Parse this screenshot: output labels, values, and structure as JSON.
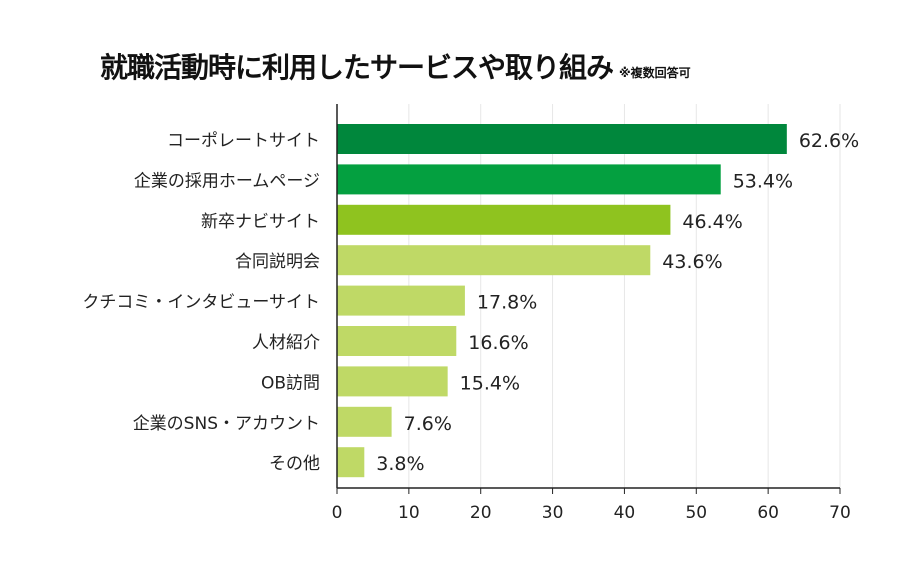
{
  "chart_data": {
    "type": "bar",
    "orientation": "horizontal",
    "title": "就職活動時に利用したサービスや取り組み",
    "subtitle": "※複数回答可",
    "categories": [
      "コーポレートサイト",
      "企業の採用ホームページ",
      "新卒ナビサイト",
      "合同説明会",
      "クチコミ・インタビューサイト",
      "人材紹介",
      "OB訪問",
      "企業のSNS・アカウント",
      "その他"
    ],
    "values": [
      62.6,
      53.4,
      46.4,
      43.6,
      17.8,
      16.6,
      15.4,
      7.6,
      3.8
    ],
    "data_labels": [
      "62.6%",
      "53.4%",
      "46.4%",
      "43.6%",
      "17.8%",
      "16.6%",
      "15.4%",
      "7.6%",
      "3.8%"
    ],
    "colors": [
      "#00873c",
      "#04a040",
      "#8fc31f",
      "#bfd966",
      "#bfd966",
      "#bfd966",
      "#bfd966",
      "#bfd966",
      "#bfd966"
    ],
    "xlim": [
      0,
      70
    ],
    "xticks": [
      "0",
      "10",
      "20",
      "30",
      "40",
      "50",
      "60",
      "70"
    ],
    "grid": true,
    "xlabel": "",
    "ylabel": ""
  }
}
